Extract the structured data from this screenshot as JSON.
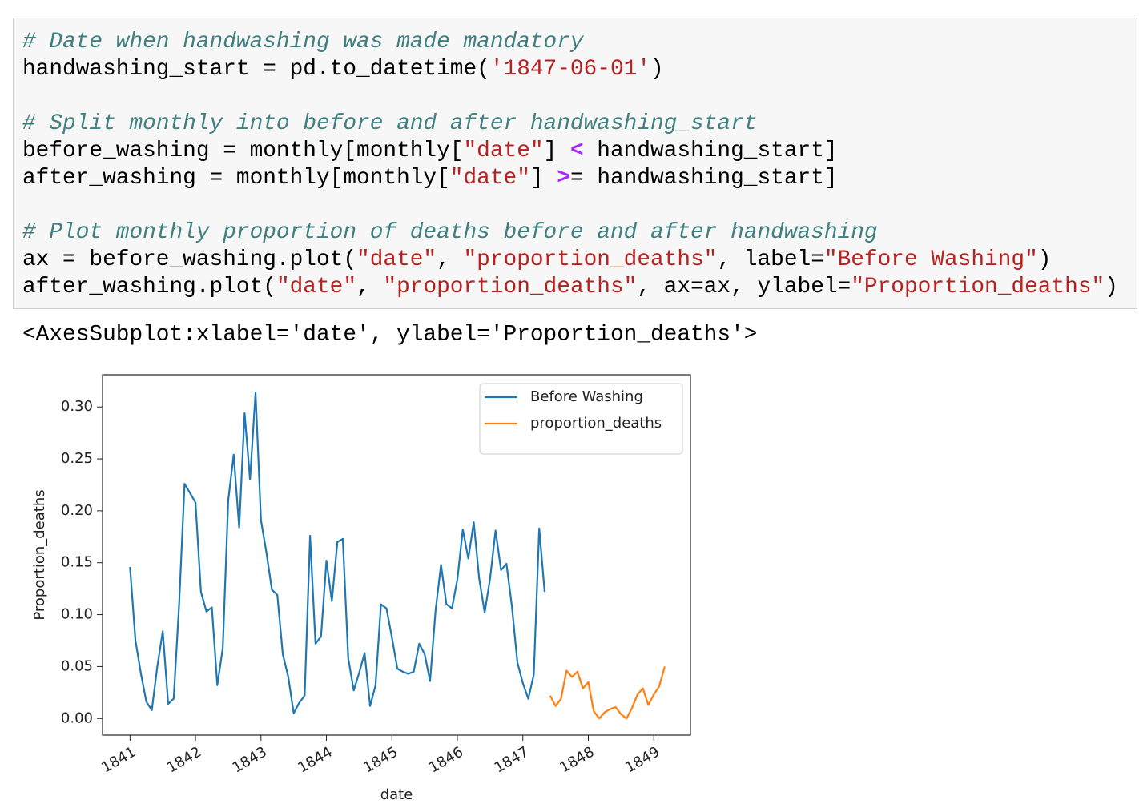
{
  "code": {
    "blocks": [
      [
        [
          {
            "text": "# Date when handwashing was made mandatory",
            "color": "#408080",
            "italic": true
          }
        ],
        [
          {
            "text": "handwashing_start = pd.to_datetime(",
            "color": "#000000"
          },
          {
            "text": "'1847-06-01'",
            "color": "#BA2121"
          },
          {
            "text": ")",
            "color": "#000000"
          }
        ]
      ],
      [
        [
          {
            "text": "# Split monthly into before and after handwashing_start",
            "color": "#408080",
            "italic": true
          }
        ],
        [
          {
            "text": "before_washing = monthly[monthly[",
            "color": "#000000"
          },
          {
            "text": "\"date\"",
            "color": "#BA2121"
          },
          {
            "text": "] ",
            "color": "#000000"
          },
          {
            "text": "<",
            "color": "#AA22FF",
            "bold": true
          },
          {
            "text": " handwashing_start]",
            "color": "#000000"
          }
        ],
        [
          {
            "text": "after_washing = monthly[monthly[",
            "color": "#000000"
          },
          {
            "text": "\"date\"",
            "color": "#BA2121"
          },
          {
            "text": "] ",
            "color": "#000000"
          },
          {
            "text": ">",
            "color": "#AA22FF",
            "bold": true
          },
          {
            "text": "= handwashing_start]",
            "color": "#000000"
          }
        ]
      ],
      [
        [
          {
            "text": "# Plot monthly proportion of deaths before and after handwashing",
            "color": "#408080",
            "italic": true
          }
        ],
        [
          {
            "text": "ax = before_washing.plot(",
            "color": "#000000"
          },
          {
            "text": "\"date\"",
            "color": "#BA2121"
          },
          {
            "text": ", ",
            "color": "#000000"
          },
          {
            "text": "\"proportion_deaths\"",
            "color": "#BA2121"
          },
          {
            "text": ", label=",
            "color": "#000000"
          },
          {
            "text": "\"Before Washing\"",
            "color": "#BA2121"
          },
          {
            "text": ")",
            "color": "#000000"
          }
        ],
        [
          {
            "text": "after_washing.plot(",
            "color": "#000000"
          },
          {
            "text": "\"date\"",
            "color": "#BA2121"
          },
          {
            "text": ", ",
            "color": "#000000"
          },
          {
            "text": "\"proportion_deaths\"",
            "color": "#BA2121"
          },
          {
            "text": ", ax=ax, ylabel=",
            "color": "#000000"
          },
          {
            "text": "\"Proportion_deaths\"",
            "color": "#BA2121"
          },
          {
            "text": ")",
            "color": "#000000"
          }
        ]
      ]
    ]
  },
  "output": {
    "text": "<AxesSubplot:xlabel='date', ylabel='Proportion_deaths'>"
  },
  "chart_data": {
    "type": "line",
    "x_label": "date",
    "y_label": "Proportion_deaths",
    "xlim": [
      1840.58,
      1849.56
    ],
    "xticks": [
      1841,
      1842,
      1843,
      1844,
      1845,
      1846,
      1847,
      1848,
      1849
    ],
    "ylim": [
      -0.016,
      0.331
    ],
    "yticks": [
      {
        "value": 0,
        "label": "0.00"
      },
      0.05,
      {
        "value": 0.1,
        "label": "0.10"
      },
      0.15,
      {
        "value": 0.2,
        "label": "0.20"
      },
      0.25,
      {
        "value": 0.3,
        "label": "0.30"
      }
    ],
    "legend": "upper right",
    "series": [
      {
        "name": "Before Washing",
        "color": "#1f77b4",
        "x": [
          1841,
          1841.083,
          1841.167,
          1841.25,
          1841.333,
          1841.417,
          1841.5,
          1841.583,
          1841.667,
          1841.75,
          1841.833,
          1841.917,
          1842,
          1842.083,
          1842.167,
          1842.25,
          1842.333,
          1842.417,
          1842.5,
          1842.583,
          1842.667,
          1842.75,
          1842.833,
          1842.917,
          1843,
          1843.083,
          1843.167,
          1843.25,
          1843.333,
          1843.417,
          1843.5,
          1843.583,
          1843.667,
          1843.75,
          1843.833,
          1843.917,
          1844,
          1844.083,
          1844.167,
          1844.25,
          1844.333,
          1844.417,
          1844.5,
          1844.583,
          1844.667,
          1844.75,
          1844.833,
          1844.917,
          1845,
          1845.083,
          1845.167,
          1845.25,
          1845.333,
          1845.417,
          1845.5,
          1845.583,
          1845.667,
          1845.75,
          1845.833,
          1845.917,
          1846,
          1846.083,
          1846.167,
          1846.25,
          1846.333,
          1846.417,
          1846.5,
          1846.583,
          1846.667,
          1846.75,
          1846.833,
          1846.917,
          1847,
          1847.083,
          1847.167,
          1847.25,
          1847.333
        ],
        "values": [
          0.146,
          0.075,
          0.043,
          0.016,
          0.008,
          0.05,
          0.084,
          0.014,
          0.019,
          0.11,
          0.226,
          0.217,
          0.208,
          0.122,
          0.103,
          0.107,
          0.032,
          0.068,
          0.21,
          0.254,
          0.184,
          0.294,
          0.23,
          0.314,
          0.191,
          0.16,
          0.124,
          0.119,
          0.062,
          0.04,
          0.005,
          0.015,
          0.022,
          0.176,
          0.072,
          0.079,
          0.152,
          0.113,
          0.17,
          0.173,
          0.058,
          0.027,
          0.044,
          0.063,
          0.012,
          0.032,
          0.11,
          0.106,
          0.078,
          0.048,
          0.045,
          0.043,
          0.045,
          0.072,
          0.062,
          0.036,
          0.104,
          0.148,
          0.11,
          0.106,
          0.134,
          0.182,
          0.154,
          0.189,
          0.135,
          0.102,
          0.135,
          0.181,
          0.143,
          0.149,
          0.108,
          0.054,
          0.034,
          0.019,
          0.042,
          0.183,
          0.122
        ]
      },
      {
        "name": "proportion_deaths",
        "color": "#ff7f0e",
        "x": [
          1847.417,
          1847.5,
          1847.583,
          1847.667,
          1847.75,
          1847.833,
          1847.917,
          1848,
          1848.083,
          1848.167,
          1848.25,
          1848.333,
          1848.417,
          1848.5,
          1848.583,
          1848.667,
          1848.75,
          1848.833,
          1848.917,
          1849,
          1849.083,
          1849.167
        ],
        "values": [
          0.022,
          0.012,
          0.019,
          0.046,
          0.04,
          0.045,
          0.029,
          0.035,
          0.007,
          0,
          0.006,
          0.009,
          0.011,
          0.004,
          0,
          0.01,
          0.023,
          0.029,
          0.013,
          0.023,
          0.031,
          0.05
        ]
      }
    ]
  }
}
